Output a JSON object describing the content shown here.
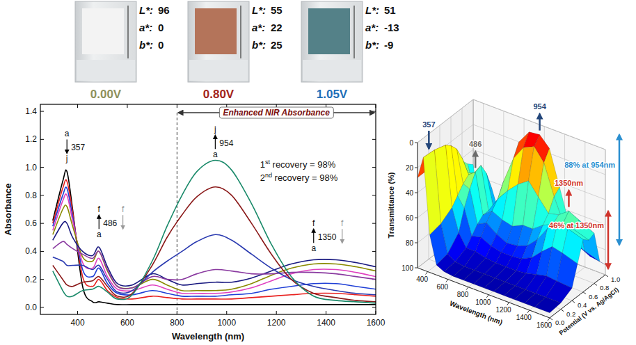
{
  "lab_labels": [
    "L*:",
    "a*:",
    "b*:"
  ],
  "samples": [
    {
      "label": "0.00V",
      "color": "#8f915c",
      "lab": [
        96,
        0,
        0
      ]
    },
    {
      "label": "0.80V",
      "color": "#a3261c",
      "lab": [
        55,
        22,
        25
      ]
    },
    {
      "label": "1.05V",
      "color": "#1f6fb8",
      "lab": [
        51,
        -13,
        -9
      ]
    }
  ],
  "chart_data": [
    {
      "type": "line",
      "x_label": "Wavelength (nm)",
      "y_label": "Absorbance",
      "x": [
        300,
        340,
        357,
        380,
        420,
        460,
        486,
        520,
        560,
        620,
        700,
        760,
        820,
        880,
        954,
        1020,
        1100,
        1180,
        1260,
        1350,
        1440,
        1520,
        1600
      ],
      "series": [
        {
          "color": "#000000",
          "values": [
            0.62,
            0.9,
            0.97,
            0.7,
            0.15,
            0.04,
            0.04,
            0.03,
            0.02,
            0.02,
            0.02,
            0.02,
            0.02,
            0.02,
            0.02,
            0.02,
            0.02,
            0.02,
            0.02,
            0.02,
            0.02,
            0.02,
            0.02
          ]
        },
        {
          "color": "#e8201e",
          "values": [
            0.6,
            0.85,
            0.9,
            0.68,
            0.22,
            0.15,
            0.2,
            0.12,
            0.07,
            0.06,
            0.08,
            0.07,
            0.06,
            0.06,
            0.06,
            0.06,
            0.07,
            0.08,
            0.09,
            0.1,
            0.1,
            0.09,
            0.08
          ]
        },
        {
          "color": "#1f3fd6",
          "values": [
            0.58,
            0.8,
            0.85,
            0.65,
            0.27,
            0.22,
            0.28,
            0.17,
            0.1,
            0.09,
            0.12,
            0.1,
            0.08,
            0.08,
            0.08,
            0.09,
            0.1,
            0.13,
            0.15,
            0.17,
            0.17,
            0.15,
            0.13
          ]
        },
        {
          "color": "#e040c0",
          "values": [
            0.55,
            0.76,
            0.8,
            0.62,
            0.32,
            0.28,
            0.35,
            0.22,
            0.13,
            0.12,
            0.16,
            0.13,
            0.1,
            0.1,
            0.1,
            0.11,
            0.14,
            0.19,
            0.24,
            0.27,
            0.27,
            0.25,
            0.22
          ]
        },
        {
          "color": "#8a8a00",
          "values": [
            0.52,
            0.7,
            0.72,
            0.58,
            0.36,
            0.33,
            0.4,
            0.26,
            0.15,
            0.14,
            0.2,
            0.16,
            0.12,
            0.12,
            0.12,
            0.13,
            0.17,
            0.23,
            0.28,
            0.31,
            0.31,
            0.29,
            0.26
          ]
        },
        {
          "color": "#1a1a80",
          "values": [
            0.48,
            0.6,
            0.6,
            0.5,
            0.4,
            0.37,
            0.43,
            0.29,
            0.17,
            0.16,
            0.24,
            0.2,
            0.16,
            0.17,
            0.18,
            0.18,
            0.21,
            0.26,
            0.31,
            0.34,
            0.34,
            0.32,
            0.29
          ]
        },
        {
          "color": "#8a3aa0",
          "values": [
            0.42,
            0.47,
            0.45,
            0.42,
            0.38,
            0.35,
            0.4,
            0.27,
            0.15,
            0.14,
            0.22,
            0.2,
            0.2,
            0.24,
            0.27,
            0.26,
            0.24,
            0.24,
            0.25,
            0.25,
            0.24,
            0.22,
            0.2
          ]
        },
        {
          "color": "#2a3ab0",
          "values": [
            0.36,
            0.33,
            0.3,
            0.3,
            0.3,
            0.27,
            0.3,
            0.2,
            0.11,
            0.12,
            0.25,
            0.33,
            0.4,
            0.47,
            0.52,
            0.48,
            0.38,
            0.28,
            0.2,
            0.15,
            0.12,
            0.1,
            0.09
          ]
        },
        {
          "color": "#8b1a1a",
          "values": [
            0.3,
            0.2,
            0.16,
            0.15,
            0.18,
            0.19,
            0.22,
            0.15,
            0.08,
            0.1,
            0.3,
            0.5,
            0.66,
            0.79,
            0.86,
            0.8,
            0.6,
            0.38,
            0.2,
            0.1,
            0.07,
            0.05,
            0.04
          ]
        },
        {
          "color": "#1a8a6a",
          "values": [
            0.26,
            0.12,
            0.08,
            0.08,
            0.12,
            0.13,
            0.15,
            0.11,
            0.06,
            0.09,
            0.33,
            0.58,
            0.8,
            0.97,
            1.05,
            0.98,
            0.74,
            0.45,
            0.22,
            0.08,
            0.05,
            0.04,
            0.03
          ]
        }
      ],
      "xlim": [
        250,
        1600
      ],
      "ylim": [
        -0.05,
        1.45
      ],
      "xticks": [
        400,
        600,
        800,
        1000,
        1200,
        1400,
        1600
      ],
      "yticks": [
        {
          "value": 0,
          "label": "0.0"
        },
        0.2,
        0.4,
        0.6,
        0.8,
        {
          "value": 1,
          "label": "1.0"
        },
        1.2,
        1.4
      ],
      "grid": false,
      "region": {
        "label": "Enhanced NIR Absorbance",
        "from": 800,
        "to": 1600
      },
      "notes": [
        "1st recovery = 98%",
        "2nd recovery = 98%"
      ],
      "arrows": [
        {
          "label": "357",
          "x": 357,
          "y": 1.14,
          "start": "a",
          "end": "j",
          "direction": "down"
        },
        {
          "label": "486",
          "x": 486,
          "y": 0.6,
          "start": "a",
          "end": "f",
          "direction": "up",
          "return": "f"
        },
        {
          "label": "954",
          "x": 954,
          "y": 1.17,
          "start": "a",
          "end": "j",
          "direction": "up"
        },
        {
          "label": "1350",
          "x": 1350,
          "y": 0.5,
          "start": "a",
          "end": "f",
          "direction": "up",
          "return": "f"
        }
      ]
    },
    {
      "type": "surface",
      "x_label": "Wavelength (nm)",
      "y_label": "Potential (V vs. Ag/AgCl)",
      "z_label": "Transmittance (%)",
      "x": [
        300,
        357,
        420,
        486,
        560,
        650,
        750,
        850,
        954,
        1050,
        1150,
        1250,
        1350,
        1450,
        1600
      ],
      "y": [
        0,
        0.2,
        0.4,
        0.5,
        0.6,
        0.7,
        0.8,
        0.9,
        1
      ],
      "z": [
        [
          28,
          10,
          70,
          92,
          95,
          96,
          96,
          96,
          96,
          96,
          96,
          96,
          96,
          96,
          96
        ],
        [
          28,
          11,
          68,
          90,
          94,
          95,
          95,
          95,
          95,
          95,
          95,
          95,
          95,
          95,
          95
        ],
        [
          30,
          14,
          62,
          80,
          90,
          90,
          92,
          93,
          93,
          93,
          92,
          90,
          88,
          89,
          90
        ],
        [
          31,
          18,
          56,
          64,
          84,
          82,
          86,
          88,
          88,
          87,
          83,
          75,
          68,
          70,
          74
        ],
        [
          33,
          24,
          50,
          52,
          78,
          74,
          80,
          84,
          83,
          80,
          72,
          60,
          52,
          54,
          58
        ],
        [
          36,
          35,
          46,
          42,
          74,
          68,
          72,
          74,
          70,
          70,
          64,
          60,
          56,
          58,
          62
        ],
        [
          42,
          50,
          48,
          40,
          74,
          62,
          52,
          44,
          38,
          48,
          58,
          56,
          50,
          54,
          60
        ],
        [
          48,
          66,
          58,
          50,
          78,
          52,
          30,
          18,
          14,
          24,
          48,
          68,
          78,
          82,
          86
        ],
        [
          52,
          82,
          74,
          66,
          84,
          48,
          20,
          9,
          8,
          16,
          44,
          72,
          86,
          90,
          92
        ]
      ],
      "xlim": [
        300,
        1600
      ],
      "ylim": [
        0,
        1
      ],
      "zlim": [
        0,
        100
      ],
      "xticks": [
        400,
        600,
        800,
        1000,
        1200,
        1400,
        1600
      ],
      "yticks": [
        {
          "value": 0,
          "label": "0.0"
        },
        0.2,
        0.4,
        0.6,
        0.8,
        {
          "value": 1,
          "label": "1.0"
        }
      ],
      "zticks": [
        0,
        20,
        40,
        60,
        80,
        100
      ],
      "grid": true,
      "annotations": [
        {
          "text": "357",
          "x": 357,
          "y": 0.1,
          "z": 10,
          "kind": "arrow-down",
          "color": "#23467a"
        },
        {
          "text": "486",
          "x": 486,
          "y": 0.7,
          "z": 42,
          "kind": "arrow-up",
          "color": "#6b6b6b"
        },
        {
          "text": "954",
          "x": 954,
          "y": 1,
          "z": 8,
          "kind": "arrow-up",
          "color": "#23467a"
        },
        {
          "text": "1350nm",
          "x": 1350,
          "y": 0.8,
          "z": 50,
          "kind": "arrow-up",
          "color": "#d0342c"
        },
        {
          "text": "88% at 954nm",
          "x": 954,
          "y": 1,
          "z": [
            96,
            8
          ],
          "kind": "span",
          "color": "#2a8fd0"
        },
        {
          "text": "46% at 1350nm",
          "x": 1350,
          "y": 0.8,
          "z": [
            96,
            50
          ],
          "kind": "span",
          "color": "#d0342c"
        }
      ]
    }
  ]
}
